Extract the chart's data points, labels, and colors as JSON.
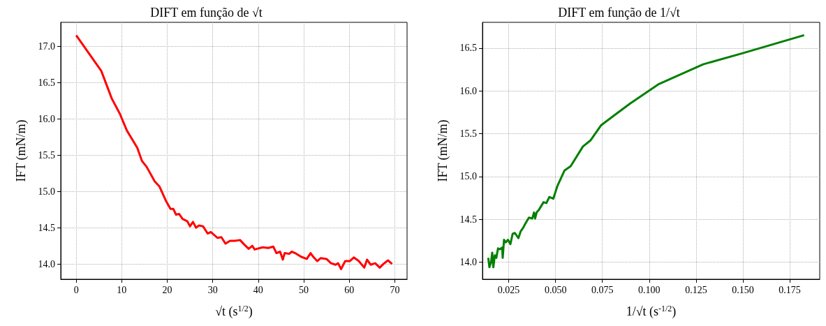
{
  "chart_data": [
    {
      "type": "line",
      "title": "DIFT em função de √t",
      "xlabel": "√t (s$^{1/2}$)",
      "ylabel": "IFT (mN/m)",
      "grid": true,
      "marker": "none",
      "line_style": "solid",
      "xlim": [
        -3.4,
        72.7
      ],
      "xticks": [
        0,
        10,
        20,
        30,
        40,
        50,
        60,
        70
      ],
      "ylim": [
        13.79,
        17.33
      ],
      "yticks": [
        {
          "value": 14,
          "label": "14.0"
        },
        {
          "value": 14.5,
          "label": "14.5"
        },
        {
          "value": 15,
          "label": "15.0"
        },
        {
          "value": 15.5,
          "label": "15.5"
        },
        {
          "value": 16,
          "label": "16.0"
        },
        {
          "value": 16.5,
          "label": "16.5"
        },
        {
          "value": 17,
          "label": "17.0"
        }
      ],
      "series": [
        {
          "color": "#ff0000",
          "x": [
            0,
            5.51,
            7.81,
            9.59,
            11.12,
            13.42,
            14.44,
            15.46,
            17.24,
            18.27,
            19.8,
            20.71,
            21.33,
            21.94,
            22.6,
            23.37,
            24.39,
            25.0,
            25.66,
            26.33,
            26.94,
            27.86,
            28.88,
            29.59,
            31.02,
            31.89,
            32.8,
            33.8,
            34.85,
            36.0,
            36.9,
            37.9,
            38.7,
            39.2,
            40.97,
            42.2,
            43.3,
            44.0,
            44.8,
            45.4,
            45.8,
            46.8,
            47.35,
            48.1,
            49.4,
            50.66,
            51.5,
            52.2,
            52.96,
            53.7,
            55.0,
            56.0,
            57.0,
            57.55,
            58.2,
            59.1,
            60.1,
            61.0,
            62.1,
            63.3,
            63.9,
            64.7,
            65.7,
            66.7,
            67.5,
            68.5,
            69.4
          ],
          "values": [
            17.15,
            16.66,
            16.28,
            16.07,
            15.84,
            15.6,
            15.42,
            15.34,
            15.14,
            15.07,
            14.86,
            14.76,
            14.76,
            14.68,
            14.69,
            14.62,
            14.59,
            14.52,
            14.58,
            14.5,
            14.53,
            14.52,
            14.42,
            14.44,
            14.36,
            14.37,
            14.28,
            14.32,
            14.32,
            14.33,
            14.27,
            14.21,
            14.25,
            14.2,
            14.23,
            14.22,
            14.24,
            14.15,
            14.17,
            14.06,
            14.15,
            14.14,
            14.17,
            14.15,
            14.1,
            14.07,
            14.15,
            14.09,
            14.04,
            14.08,
            14.07,
            14.01,
            13.99,
            14.01,
            13.93,
            14.04,
            14.04,
            14.09,
            14.04,
            13.95,
            14.06,
            13.99,
            14.01,
            13.95,
            14.0,
            14.05,
            14.0
          ]
        }
      ]
    },
    {
      "type": "line",
      "title": "DIFT em função de 1/√t",
      "xlabel": "1/√t (s$^{-1/2}$)",
      "ylabel": "IFT (mN/m)",
      "grid": true,
      "marker": "none",
      "line_style": "solid",
      "xlim": [
        0.011,
        0.191
      ],
      "xticks": [
        {
          "value": 0.025,
          "label": "0.025"
        },
        {
          "value": 0.05,
          "label": "0.050"
        },
        {
          "value": 0.075,
          "label": "0.075"
        },
        {
          "value": 0.1,
          "label": "0.100"
        },
        {
          "value": 0.125,
          "label": "0.125"
        },
        {
          "value": 0.15,
          "label": "0.150"
        },
        {
          "value": 0.175,
          "label": "0.175"
        }
      ],
      "ylim": [
        13.8,
        16.8
      ],
      "yticks": [
        {
          "value": 14,
          "label": "14.0"
        },
        {
          "value": 14.5,
          "label": "14.5"
        },
        {
          "value": 15,
          "label": "15.0"
        },
        {
          "value": 15.5,
          "label": "15.5"
        },
        {
          "value": 16,
          "label": "16.0"
        },
        {
          "value": 16.5,
          "label": "16.5"
        }
      ],
      "series": [
        {
          "color": "#008000",
          "x": [
            0.0141,
            0.0147,
            0.0156,
            0.0162,
            0.0168,
            0.0176,
            0.0184,
            0.0193,
            0.0203,
            0.0215,
            0.0218,
            0.0225,
            0.0234,
            0.0246,
            0.0259,
            0.0271,
            0.0283,
            0.0302,
            0.0314,
            0.0327,
            0.0339,
            0.0358,
            0.0376,
            0.0385,
            0.0391,
            0.0399,
            0.0411,
            0.0436,
            0.0451,
            0.0467,
            0.0488,
            0.051,
            0.0548,
            0.0581,
            0.0646,
            0.0686,
            0.0744,
            0.0817,
            0.0897,
            0.1052,
            0.1288,
            0.15,
            0.1827
          ],
          "values": [
            14.05,
            13.94,
            14.0,
            14.11,
            13.94,
            14.08,
            14.05,
            14.16,
            14.15,
            14.17,
            14.05,
            14.26,
            14.23,
            14.26,
            14.21,
            14.33,
            14.34,
            14.28,
            14.36,
            14.4,
            14.45,
            14.52,
            14.51,
            14.58,
            14.51,
            14.58,
            14.61,
            14.7,
            14.69,
            14.76,
            14.74,
            14.89,
            15.07,
            15.12,
            15.35,
            15.42,
            15.6,
            15.72,
            15.85,
            16.08,
            16.31,
            16.44,
            16.65
          ]
        }
      ]
    }
  ]
}
